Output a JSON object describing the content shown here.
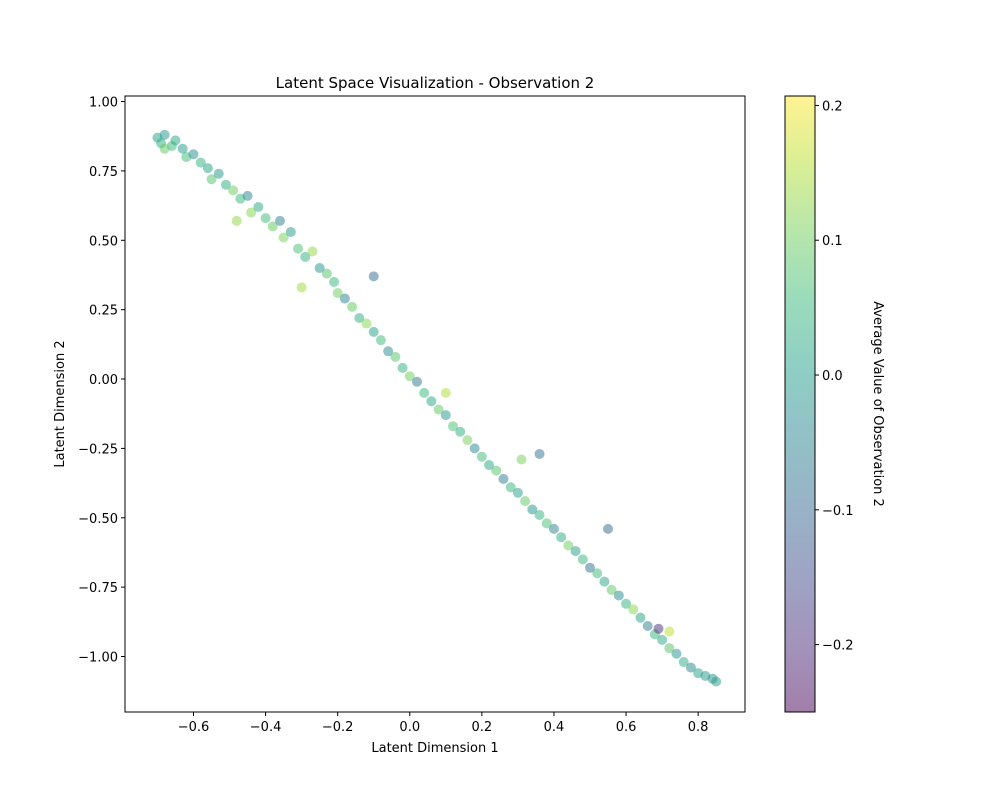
{
  "chart_data": {
    "type": "scatter",
    "title": "Latent Space Visualization - Observation 2",
    "xlabel": "Latent Dimension 1",
    "ylabel": "Latent Dimension 2",
    "xlim": [
      -0.79,
      0.93
    ],
    "ylim": [
      -1.2,
      1.02
    ],
    "x_ticks": [
      -0.6,
      -0.4,
      -0.2,
      0.0,
      0.2,
      0.4,
      0.6,
      0.8
    ],
    "x_tick_labels": [
      "−0.6",
      "−0.4",
      "−0.2",
      "0.0",
      "0.2",
      "0.4",
      "0.6",
      "0.8"
    ],
    "y_ticks": [
      -1.0,
      -0.75,
      -0.5,
      -0.25,
      0.0,
      0.25,
      0.5,
      0.75,
      1.0
    ],
    "y_tick_labels": [
      "−1.00",
      "−0.75",
      "−0.50",
      "−0.25",
      "0.00",
      "0.25",
      "0.50",
      "0.75",
      "1.00"
    ],
    "grid": false,
    "colormap": "viridis",
    "point_alpha": 0.5,
    "colorbar": {
      "label": "Average Value of Observation 2",
      "range": [
        -0.25,
        0.207
      ],
      "ticks": [
        -0.2,
        -0.1,
        0.0,
        0.1,
        0.2
      ],
      "tick_labels": [
        "−0.2",
        "−0.1",
        "0.0",
        "0.1",
        "0.2"
      ]
    },
    "points": [
      {
        "x": -0.7,
        "y": 0.87,
        "c": 0.01
      },
      {
        "x": -0.69,
        "y": 0.85,
        "c": 0.03
      },
      {
        "x": -0.68,
        "y": 0.88,
        "c": -0.02
      },
      {
        "x": -0.66,
        "y": 0.84,
        "c": 0.05
      },
      {
        "x": -0.65,
        "y": 0.86,
        "c": 0.02
      },
      {
        "x": -0.63,
        "y": 0.83,
        "c": 0.0
      },
      {
        "x": -0.62,
        "y": 0.8,
        "c": 0.06
      },
      {
        "x": -0.6,
        "y": 0.81,
        "c": -0.03
      },
      {
        "x": -0.58,
        "y": 0.78,
        "c": 0.04
      },
      {
        "x": -0.56,
        "y": 0.76,
        "c": 0.01
      },
      {
        "x": -0.55,
        "y": 0.72,
        "c": 0.08
      },
      {
        "x": -0.53,
        "y": 0.74,
        "c": -0.01
      },
      {
        "x": -0.51,
        "y": 0.7,
        "c": 0.03
      },
      {
        "x": -0.49,
        "y": 0.68,
        "c": 0.1
      },
      {
        "x": -0.47,
        "y": 0.65,
        "c": 0.05
      },
      {
        "x": -0.45,
        "y": 0.66,
        "c": -0.04
      },
      {
        "x": -0.44,
        "y": 0.6,
        "c": 0.12
      },
      {
        "x": -0.42,
        "y": 0.62,
        "c": 0.02
      },
      {
        "x": -0.4,
        "y": 0.58,
        "c": 0.06
      },
      {
        "x": -0.38,
        "y": 0.55,
        "c": 0.09
      },
      {
        "x": -0.36,
        "y": 0.57,
        "c": -0.06
      },
      {
        "x": -0.35,
        "y": 0.51,
        "c": 0.11
      },
      {
        "x": -0.33,
        "y": 0.53,
        "c": 0.0
      },
      {
        "x": -0.31,
        "y": 0.47,
        "c": 0.07
      },
      {
        "x": -0.29,
        "y": 0.44,
        "c": 0.04
      },
      {
        "x": -0.27,
        "y": 0.46,
        "c": 0.13
      },
      {
        "x": -0.25,
        "y": 0.4,
        "c": -0.02
      },
      {
        "x": -0.23,
        "y": 0.38,
        "c": 0.08
      },
      {
        "x": -0.21,
        "y": 0.35,
        "c": 0.05
      },
      {
        "x": -0.2,
        "y": 0.31,
        "c": 0.1
      },
      {
        "x": -0.18,
        "y": 0.29,
        "c": -0.05
      },
      {
        "x": -0.16,
        "y": 0.26,
        "c": 0.09
      },
      {
        "x": -0.14,
        "y": 0.22,
        "c": 0.03
      },
      {
        "x": -0.12,
        "y": 0.2,
        "c": 0.12
      },
      {
        "x": -0.1,
        "y": 0.17,
        "c": 0.01
      },
      {
        "x": -0.08,
        "y": 0.14,
        "c": 0.06
      },
      {
        "x": -0.06,
        "y": 0.1,
        "c": -0.03
      },
      {
        "x": -0.04,
        "y": 0.08,
        "c": 0.08
      },
      {
        "x": -0.02,
        "y": 0.04,
        "c": 0.04
      },
      {
        "x": 0.0,
        "y": 0.01,
        "c": 0.1
      },
      {
        "x": 0.02,
        "y": -0.01,
        "c": -0.07
      },
      {
        "x": 0.04,
        "y": -0.05,
        "c": 0.05
      },
      {
        "x": 0.06,
        "y": -0.08,
        "c": 0.02
      },
      {
        "x": 0.08,
        "y": -0.11,
        "c": 0.09
      },
      {
        "x": 0.1,
        "y": -0.13,
        "c": -0.01
      },
      {
        "x": 0.12,
        "y": -0.17,
        "c": 0.07
      },
      {
        "x": 0.14,
        "y": -0.19,
        "c": 0.03
      },
      {
        "x": 0.16,
        "y": -0.22,
        "c": 0.11
      },
      {
        "x": 0.18,
        "y": -0.25,
        "c": -0.04
      },
      {
        "x": 0.2,
        "y": -0.28,
        "c": 0.06
      },
      {
        "x": 0.22,
        "y": -0.31,
        "c": 0.02
      },
      {
        "x": 0.24,
        "y": -0.33,
        "c": 0.08
      },
      {
        "x": 0.26,
        "y": -0.36,
        "c": -0.06
      },
      {
        "x": 0.28,
        "y": -0.39,
        "c": 0.05
      },
      {
        "x": 0.3,
        "y": -0.41,
        "c": 0.01
      },
      {
        "x": 0.32,
        "y": -0.44,
        "c": 0.09
      },
      {
        "x": 0.34,
        "y": -0.47,
        "c": -0.02
      },
      {
        "x": 0.36,
        "y": -0.49,
        "c": 0.04
      },
      {
        "x": 0.38,
        "y": -0.52,
        "c": 0.07
      },
      {
        "x": 0.4,
        "y": -0.54,
        "c": -0.05
      },
      {
        "x": 0.42,
        "y": -0.57,
        "c": 0.03
      },
      {
        "x": 0.44,
        "y": -0.6,
        "c": 0.1
      },
      {
        "x": 0.46,
        "y": -0.62,
        "c": 0.0
      },
      {
        "x": 0.48,
        "y": -0.65,
        "c": 0.05
      },
      {
        "x": 0.5,
        "y": -0.68,
        "c": -0.08
      },
      {
        "x": 0.52,
        "y": -0.7,
        "c": 0.06
      },
      {
        "x": 0.54,
        "y": -0.73,
        "c": 0.02
      },
      {
        "x": 0.56,
        "y": -0.76,
        "c": 0.09
      },
      {
        "x": 0.58,
        "y": -0.78,
        "c": -0.03
      },
      {
        "x": 0.6,
        "y": -0.81,
        "c": 0.04
      },
      {
        "x": 0.62,
        "y": -0.83,
        "c": 0.12
      },
      {
        "x": 0.64,
        "y": -0.86,
        "c": 0.01
      },
      {
        "x": 0.66,
        "y": -0.89,
        "c": -0.06
      },
      {
        "x": 0.68,
        "y": -0.92,
        "c": 0.05
      },
      {
        "x": 0.7,
        "y": -0.94,
        "c": 0.02
      },
      {
        "x": 0.72,
        "y": -0.97,
        "c": 0.08
      },
      {
        "x": 0.74,
        "y": -0.99,
        "c": -0.02
      },
      {
        "x": 0.76,
        "y": -1.02,
        "c": 0.03
      },
      {
        "x": 0.78,
        "y": -1.04,
        "c": -0.04
      },
      {
        "x": 0.8,
        "y": -1.06,
        "c": 0.01
      },
      {
        "x": 0.82,
        "y": -1.07,
        "c": -0.01
      },
      {
        "x": 0.84,
        "y": -1.08,
        "c": -0.03
      },
      {
        "x": 0.85,
        "y": -1.09,
        "c": 0.0
      },
      {
        "x": -0.1,
        "y": 0.37,
        "c": -0.09
      },
      {
        "x": 0.36,
        "y": -0.27,
        "c": -0.08
      },
      {
        "x": 0.55,
        "y": -0.54,
        "c": -0.1
      },
      {
        "x": 0.69,
        "y": -0.9,
        "c": -0.19
      },
      {
        "x": 0.1,
        "y": -0.05,
        "c": 0.15
      },
      {
        "x": 0.72,
        "y": -0.91,
        "c": 0.16
      },
      {
        "x": -0.3,
        "y": 0.33,
        "c": 0.14
      },
      {
        "x": -0.48,
        "y": 0.57,
        "c": 0.13
      },
      {
        "x": 0.31,
        "y": -0.29,
        "c": 0.11
      },
      {
        "x": -0.68,
        "y": 0.83,
        "c": 0.09
      }
    ]
  }
}
